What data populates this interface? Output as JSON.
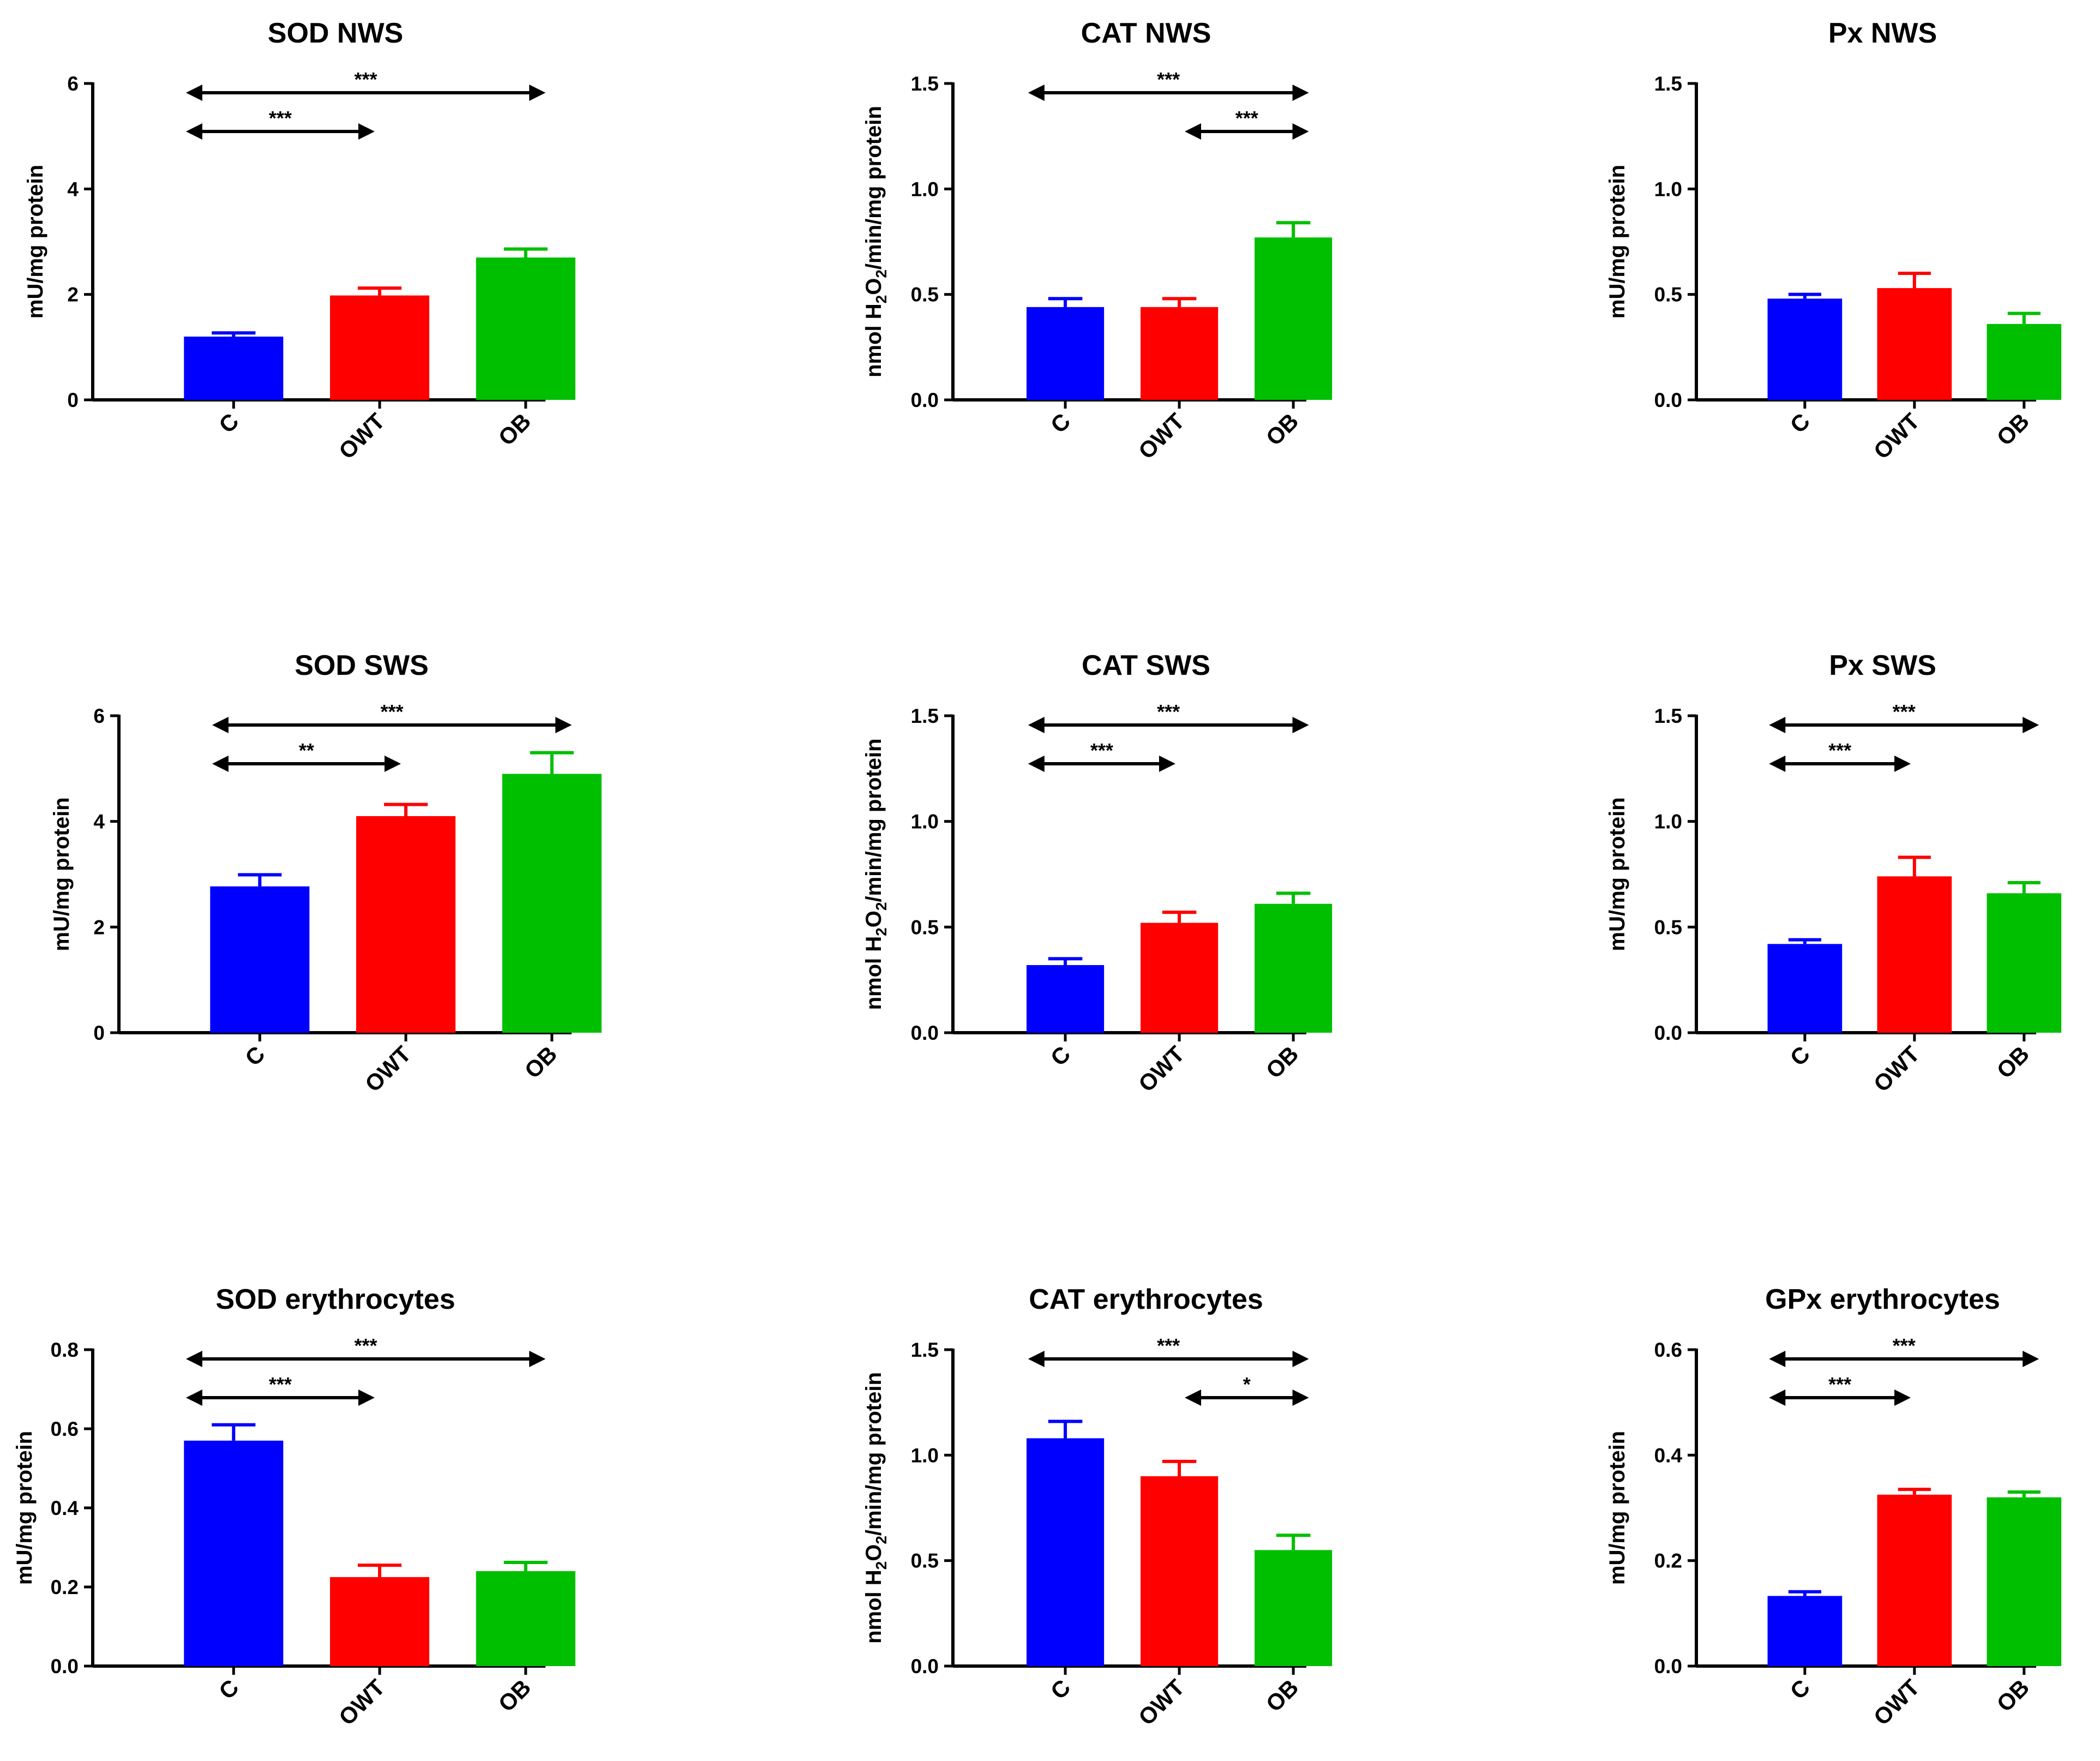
{
  "chart_data": [
    {
      "type": "bar",
      "title": "SOD NWS",
      "ylabel": "mU/mg protein",
      "ylim": [
        0,
        6
      ],
      "yticks": [
        0,
        2,
        4,
        6
      ],
      "categories": [
        "C",
        "OWT",
        "OB"
      ],
      "values": [
        1.2,
        1.98,
        2.7
      ],
      "errors": [
        0.07,
        0.14,
        0.16
      ],
      "comparisons": [
        {
          "from": "C",
          "to": "OB",
          "label": "***"
        },
        {
          "from": "C",
          "to": "OWT",
          "label": "***"
        }
      ]
    },
    {
      "type": "bar",
      "title": "CAT NWS",
      "ylabel": "nmol H2O2/min/mg protein",
      "ylim": [
        0,
        1.5
      ],
      "yticks": [
        0.0,
        0.5,
        1.0,
        1.5
      ],
      "categories": [
        "C",
        "OWT",
        "OB"
      ],
      "values": [
        0.44,
        0.44,
        0.77
      ],
      "errors": [
        0.04,
        0.04,
        0.07
      ],
      "comparisons": [
        {
          "from": "C",
          "to": "OB",
          "label": "***"
        },
        {
          "from": "OWT",
          "to": "OB",
          "label": "***"
        }
      ]
    },
    {
      "type": "bar",
      "title": "Px NWS",
      "ylabel": "mU/mg protein",
      "ylim": [
        0,
        1.5
      ],
      "yticks": [
        0.0,
        0.5,
        1.0,
        1.5
      ],
      "categories": [
        "C",
        "OWT",
        "OB"
      ],
      "values": [
        0.48,
        0.53,
        0.36
      ],
      "errors": [
        0.02,
        0.07,
        0.05
      ],
      "comparisons": []
    },
    {
      "type": "bar",
      "title": "SOD SWS",
      "ylabel": "mU/mg protein",
      "ylim": [
        0,
        6
      ],
      "yticks": [
        0,
        2,
        4,
        6
      ],
      "categories": [
        "C",
        "OWT",
        "OB"
      ],
      "values": [
        2.77,
        4.1,
        4.9
      ],
      "errors": [
        0.22,
        0.22,
        0.4
      ],
      "comparisons": [
        {
          "from": "C",
          "to": "OB",
          "label": "***"
        },
        {
          "from": "C",
          "to": "OWT",
          "label": "**"
        }
      ]
    },
    {
      "type": "bar",
      "title": "CAT SWS",
      "ylabel": "nmol H2O2/min/mg protein",
      "ylim": [
        0,
        1.5
      ],
      "yticks": [
        0.0,
        0.5,
        1.0,
        1.5
      ],
      "categories": [
        "C",
        "OWT",
        "OB"
      ],
      "values": [
        0.32,
        0.52,
        0.61
      ],
      "errors": [
        0.03,
        0.05,
        0.05
      ],
      "comparisons": [
        {
          "from": "C",
          "to": "OB",
          "label": "***"
        },
        {
          "from": "C",
          "to": "OWT",
          "label": "***"
        }
      ]
    },
    {
      "type": "bar",
      "title": "Px SWS",
      "ylabel": "mU/mg protein",
      "ylim": [
        0,
        1.5
      ],
      "yticks": [
        0.0,
        0.5,
        1.0,
        1.5
      ],
      "categories": [
        "C",
        "OWT",
        "OB"
      ],
      "values": [
        0.42,
        0.74,
        0.66
      ],
      "errors": [
        0.02,
        0.09,
        0.05
      ],
      "comparisons": [
        {
          "from": "C",
          "to": "OB",
          "label": "***"
        },
        {
          "from": "C",
          "to": "OWT",
          "label": "***"
        }
      ]
    },
    {
      "type": "bar",
      "title": "SOD erythrocytes",
      "ylabel": "mU/mg protein",
      "ylim": [
        0,
        0.8
      ],
      "yticks": [
        0.0,
        0.2,
        0.4,
        0.6,
        0.8
      ],
      "categories": [
        "C",
        "OWT",
        "OB"
      ],
      "values": [
        0.57,
        0.225,
        0.24
      ],
      "errors": [
        0.04,
        0.03,
        0.022
      ],
      "comparisons": [
        {
          "from": "C",
          "to": "OB",
          "label": "***"
        },
        {
          "from": "C",
          "to": "OWT",
          "label": "***"
        }
      ]
    },
    {
      "type": "bar",
      "title": "CAT erythrocytes",
      "ylabel": "nmol H2O2/min/mg protein",
      "ylim": [
        0,
        1.5
      ],
      "yticks": [
        0.0,
        0.5,
        1.0,
        1.5
      ],
      "categories": [
        "C",
        "OWT",
        "OB"
      ],
      "values": [
        1.08,
        0.9,
        0.55
      ],
      "errors": [
        0.08,
        0.07,
        0.07
      ],
      "comparisons": [
        {
          "from": "C",
          "to": "OB",
          "label": "***"
        },
        {
          "from": "OWT",
          "to": "OB",
          "label": "*"
        }
      ]
    },
    {
      "type": "bar",
      "title": "GPx erythrocytes",
      "ylabel": "mU/mg protein",
      "ylim": [
        0,
        0.6
      ],
      "yticks": [
        0.0,
        0.2,
        0.4,
        0.6
      ],
      "categories": [
        "C",
        "OWT",
        "OB"
      ],
      "values": [
        0.133,
        0.325,
        0.32
      ],
      "errors": [
        0.008,
        0.01,
        0.01
      ],
      "comparisons": [
        {
          "from": "C",
          "to": "OB",
          "label": "***"
        },
        {
          "from": "C",
          "to": "OWT",
          "label": "***"
        }
      ]
    }
  ],
  "colors": {
    "C": "#0000ff",
    "OWT": "#ff0000",
    "OB": "#00bf00",
    "axis": "#000000"
  }
}
